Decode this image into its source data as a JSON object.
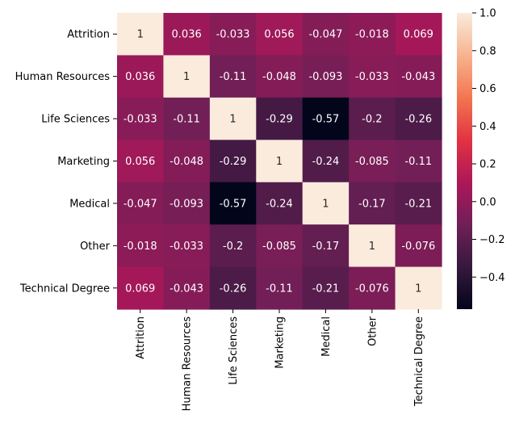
{
  "chart_data": {
    "type": "heatmap",
    "title": "",
    "xlabel": "",
    "ylabel": "",
    "rows": [
      "Attrition",
      "Human Resources",
      "Life Sciences",
      "Marketing",
      "Medical",
      "Other",
      "Technical Degree"
    ],
    "columns": [
      "Attrition",
      "Human Resources",
      "Life Sciences",
      "Marketing",
      "Medical",
      "Other",
      "Technical Degree"
    ],
    "values": [
      [
        1,
        0.036,
        -0.033,
        0.056,
        -0.047,
        -0.018,
        0.069
      ],
      [
        0.036,
        1,
        -0.11,
        -0.048,
        -0.093,
        -0.033,
        -0.043
      ],
      [
        -0.033,
        -0.11,
        1,
        -0.29,
        -0.57,
        -0.2,
        -0.26
      ],
      [
        0.056,
        -0.048,
        -0.29,
        1,
        -0.24,
        -0.085,
        -0.11
      ],
      [
        -0.047,
        -0.093,
        -0.57,
        -0.24,
        1,
        -0.17,
        -0.21
      ],
      [
        -0.018,
        -0.033,
        -0.2,
        -0.085,
        -0.17,
        1,
        -0.076
      ],
      [
        0.069,
        -0.043,
        -0.26,
        -0.11,
        -0.21,
        -0.076,
        1
      ]
    ],
    "labels": [
      [
        "1",
        "0.036",
        "-0.033",
        "0.056",
        "-0.047",
        "-0.018",
        "0.069"
      ],
      [
        "0.036",
        "1",
        "-0.11",
        "-0.048",
        "-0.093",
        "-0.033",
        "-0.043"
      ],
      [
        "-0.033",
        "-0.11",
        "1",
        "-0.29",
        "-0.57",
        "-0.2",
        "-0.26"
      ],
      [
        "0.056",
        "-0.048",
        "-0.29",
        "1",
        "-0.24",
        "-0.085",
        "-0.11"
      ],
      [
        "-0.047",
        "-0.093",
        "-0.57",
        "-0.24",
        "1",
        "-0.17",
        "-0.21"
      ],
      [
        "-0.018",
        "-0.033",
        "-0.2",
        "-0.085",
        "-0.17",
        "1",
        "-0.076"
      ],
      [
        "0.069",
        "-0.043",
        "-0.26",
        "-0.11",
        "-0.21",
        "-0.076",
        "1"
      ]
    ],
    "colorbar": {
      "vmin": -0.57,
      "vmax": 1,
      "ticks": [
        1.0,
        0.8,
        0.6,
        0.4,
        0.2,
        0.0,
        -0.2,
        -0.4
      ],
      "tick_labels": [
        "1.0",
        "0.8",
        "0.6",
        "0.4",
        "0.2",
        "0.0",
        "−0.2",
        "−0.4"
      ]
    },
    "colormap": "rocket",
    "colormap_stops": [
      "#03051a",
      "#35193e",
      "#701f57",
      "#ad1759",
      "#e13342",
      "#f37651",
      "#f6b48f",
      "#faebdd"
    ],
    "grid": false
  }
}
